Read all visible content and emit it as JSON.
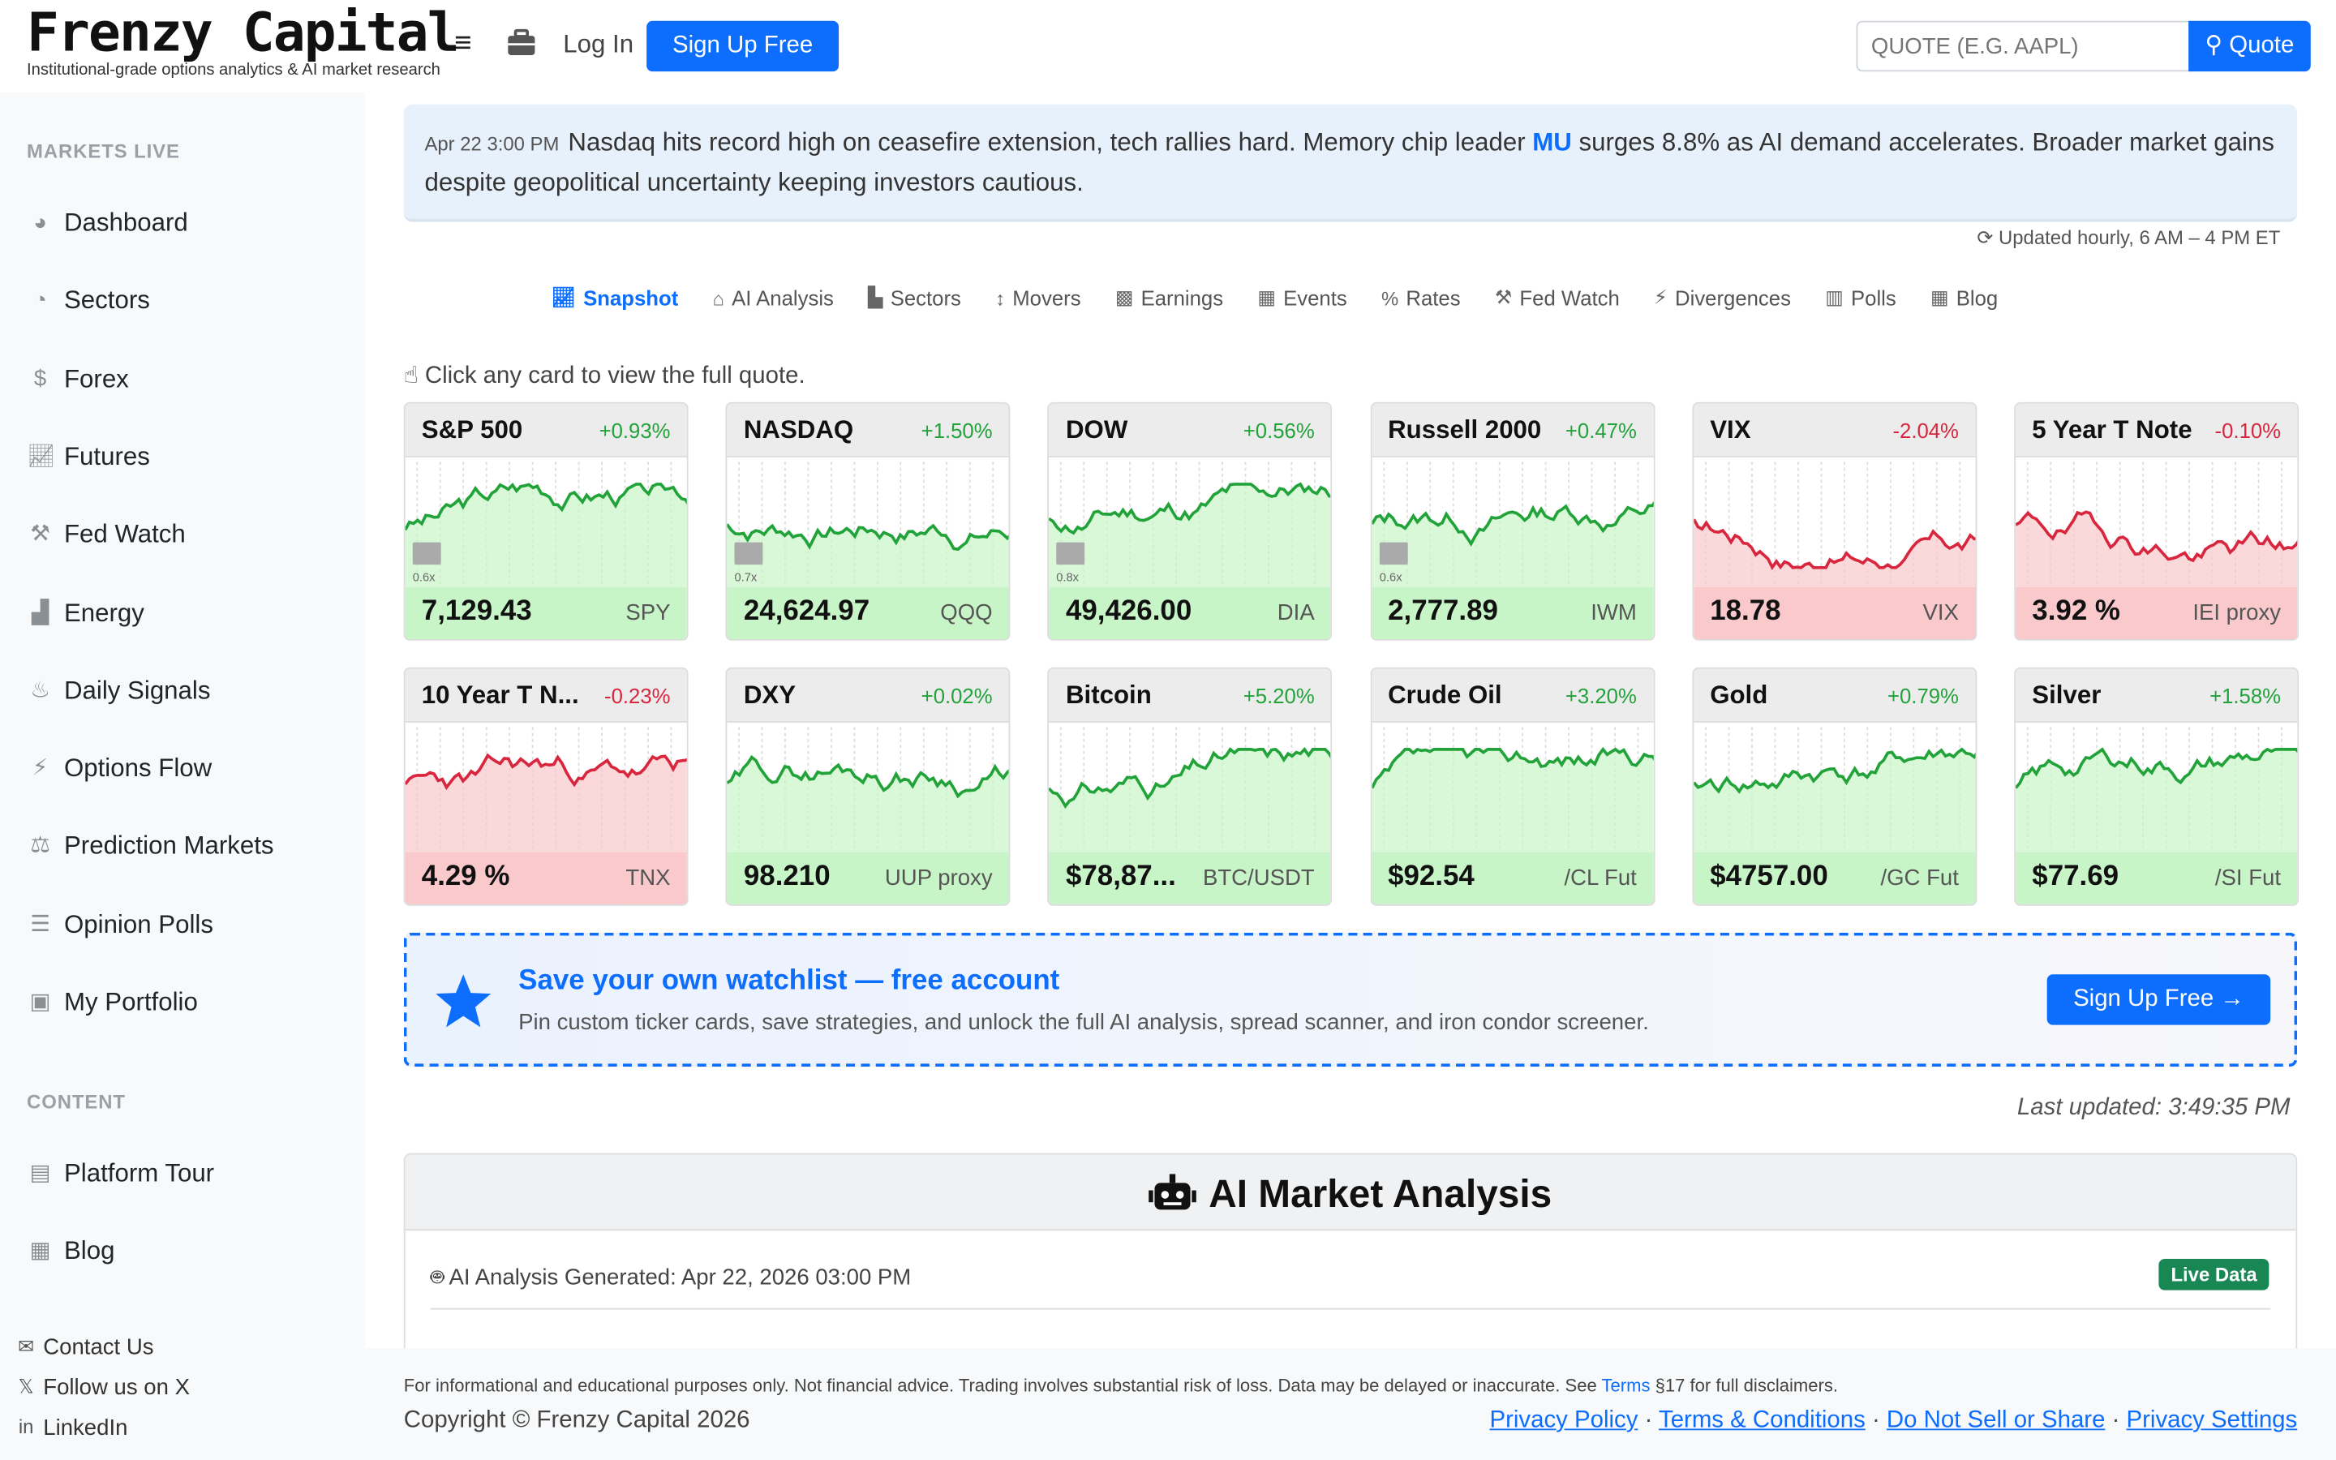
{
  "header": {
    "brand": "Frenzy Capital",
    "tagline": "Institutional-grade options analytics & AI market research",
    "login": "Log In",
    "signup": "Sign Up Free",
    "quote_placeholder": "QUOTE (E.G. AAPL)",
    "quote_button": "Quote"
  },
  "sidebar": {
    "section_markets": "MARKETS LIVE",
    "items": [
      {
        "label": "Dashboard",
        "icon": "palette-icon"
      },
      {
        "label": "Sectors",
        "icon": "pie-icon"
      },
      {
        "label": "Forex",
        "icon": "dollar-icon"
      },
      {
        "label": "Futures",
        "icon": "line-chart-icon"
      },
      {
        "label": "Fed Watch",
        "icon": "gavel-icon"
      },
      {
        "label": "Energy",
        "icon": "industry-icon"
      },
      {
        "label": "Daily Signals",
        "icon": "fire-icon"
      },
      {
        "label": "Options Flow",
        "icon": "bolt-icon"
      },
      {
        "label": "Prediction Markets",
        "icon": "scale-icon"
      },
      {
        "label": "Opinion Polls",
        "icon": "bars-icon"
      },
      {
        "label": "My Portfolio",
        "icon": "briefcase-icon"
      }
    ],
    "section_content": "CONTENT",
    "content_items": [
      {
        "label": "Platform Tour",
        "icon": "book-icon"
      },
      {
        "label": "Blog",
        "icon": "newspaper-icon"
      }
    ],
    "footer_links": [
      {
        "label": "Contact Us",
        "icon": "envelope-icon"
      },
      {
        "label": "Follow us on X",
        "icon": "x-icon"
      },
      {
        "label": "LinkedIn",
        "icon": "linkedin-icon"
      }
    ]
  },
  "news": {
    "time": "Apr 22 3:00 PM",
    "text_before": "Nasdaq hits record high on ceasefire extension, tech rallies hard. Memory chip leader ",
    "ticker": "MU",
    "text_after": " surges 8.8% as AI demand accelerates. Broader market gains despite geopolitical uncertainty keeping investors cautious."
  },
  "update_note": "Updated hourly, 6 AM – 4 PM ET",
  "tabs": [
    {
      "label": "Snapshot",
      "icon": "line-chart-icon",
      "active": true
    },
    {
      "label": "AI Analysis",
      "icon": "robot-icon"
    },
    {
      "label": "Sectors",
      "icon": "bar-chart-icon"
    },
    {
      "label": "Movers",
      "icon": "updown-icon"
    },
    {
      "label": "Earnings",
      "icon": "cubes-icon"
    },
    {
      "label": "Events",
      "icon": "calendar-icon"
    },
    {
      "label": "Rates",
      "icon": "percent-icon"
    },
    {
      "label": "Fed Watch",
      "icon": "gavel-icon"
    },
    {
      "label": "Divergences",
      "icon": "bolt-icon"
    },
    {
      "label": "Polls",
      "icon": "poll-icon"
    },
    {
      "label": "Blog",
      "icon": "newspaper-icon"
    }
  ],
  "hint": "Click any card to view the full quote.",
  "colors": {
    "up": "#22a33a",
    "down": "#d7263d",
    "up_fill": "#c8f5c8",
    "down_fill": "#f9c9cc",
    "accent": "#0d6efd"
  },
  "cards": [
    {
      "name": "S&P 500",
      "change": "+0.93%",
      "price": "7,129.43",
      "ticker": "SPY",
      "dir": "up",
      "vol": "0.6x",
      "seed": 3
    },
    {
      "name": "NASDAQ",
      "change": "+1.50%",
      "price": "24,624.97",
      "ticker": "QQQ",
      "dir": "up",
      "vol": "0.7x",
      "seed": 7
    },
    {
      "name": "DOW",
      "change": "+0.56%",
      "price": "49,426.00",
      "ticker": "DIA",
      "dir": "up",
      "vol": "0.8x",
      "seed": 11
    },
    {
      "name": "Russell 2000",
      "change": "+0.47%",
      "price": "2,777.89",
      "ticker": "IWM",
      "dir": "up",
      "vol": "0.6x",
      "seed": 13
    },
    {
      "name": "VIX",
      "change": "-2.04%",
      "price": "18.78",
      "ticker": "VIX",
      "dir": "down",
      "seed": 17
    },
    {
      "name": "5 Year T Note",
      "change": "-0.10%",
      "price": "3.92 %",
      "ticker": "IEI proxy",
      "dir": "down",
      "seed": 19
    },
    {
      "name": "10 Year T N...",
      "change": "-0.23%",
      "price": "4.29 %",
      "ticker": "TNX",
      "dir": "down",
      "seed": 23
    },
    {
      "name": "DXY",
      "change": "+0.02%",
      "price": "98.210",
      "ticker": "UUP proxy",
      "dir": "up",
      "seed": 29
    },
    {
      "name": "Bitcoin",
      "change": "+5.20%",
      "price": "$78,87...",
      "ticker": "BTC/USDT",
      "dir": "up",
      "seed": 31
    },
    {
      "name": "Crude Oil",
      "change": "+3.20%",
      "price": "$92.54",
      "ticker": "/CL Fut",
      "dir": "up",
      "seed": 37
    },
    {
      "name": "Gold",
      "change": "+0.79%",
      "price": "$4757.00",
      "ticker": "/GC Fut",
      "dir": "up",
      "seed": 41
    },
    {
      "name": "Silver",
      "change": "+1.58%",
      "price": "$77.69",
      "ticker": "/SI Fut",
      "dir": "up",
      "seed": 43
    }
  ],
  "promo": {
    "title": "Save your own watchlist — free account",
    "subtitle": "Pin custom ticker cards, save strategies, and unlock the full AI analysis, spread scanner, and iron condor screener.",
    "button": "Sign Up Free"
  },
  "last_updated": "Last updated: 3:49:35 PM",
  "ai": {
    "title": "AI Market Analysis",
    "generated": "AI Analysis Generated: Apr 22, 2026 03:00 PM",
    "badge": "Live Data"
  },
  "footer": {
    "disclaimer_before": "For informational and educational purposes only. Not financial advice. Trading involves substantial risk of loss. Data may be delayed or inaccurate. See ",
    "disclaimer_link": "Terms",
    "disclaimer_after": " §17 for full disclaimers.",
    "copyright": "Copyright © Frenzy Capital 2026",
    "links": [
      "Privacy Policy",
      "Terms & Conditions",
      "Do Not Sell or Share",
      "Privacy Settings"
    ]
  }
}
